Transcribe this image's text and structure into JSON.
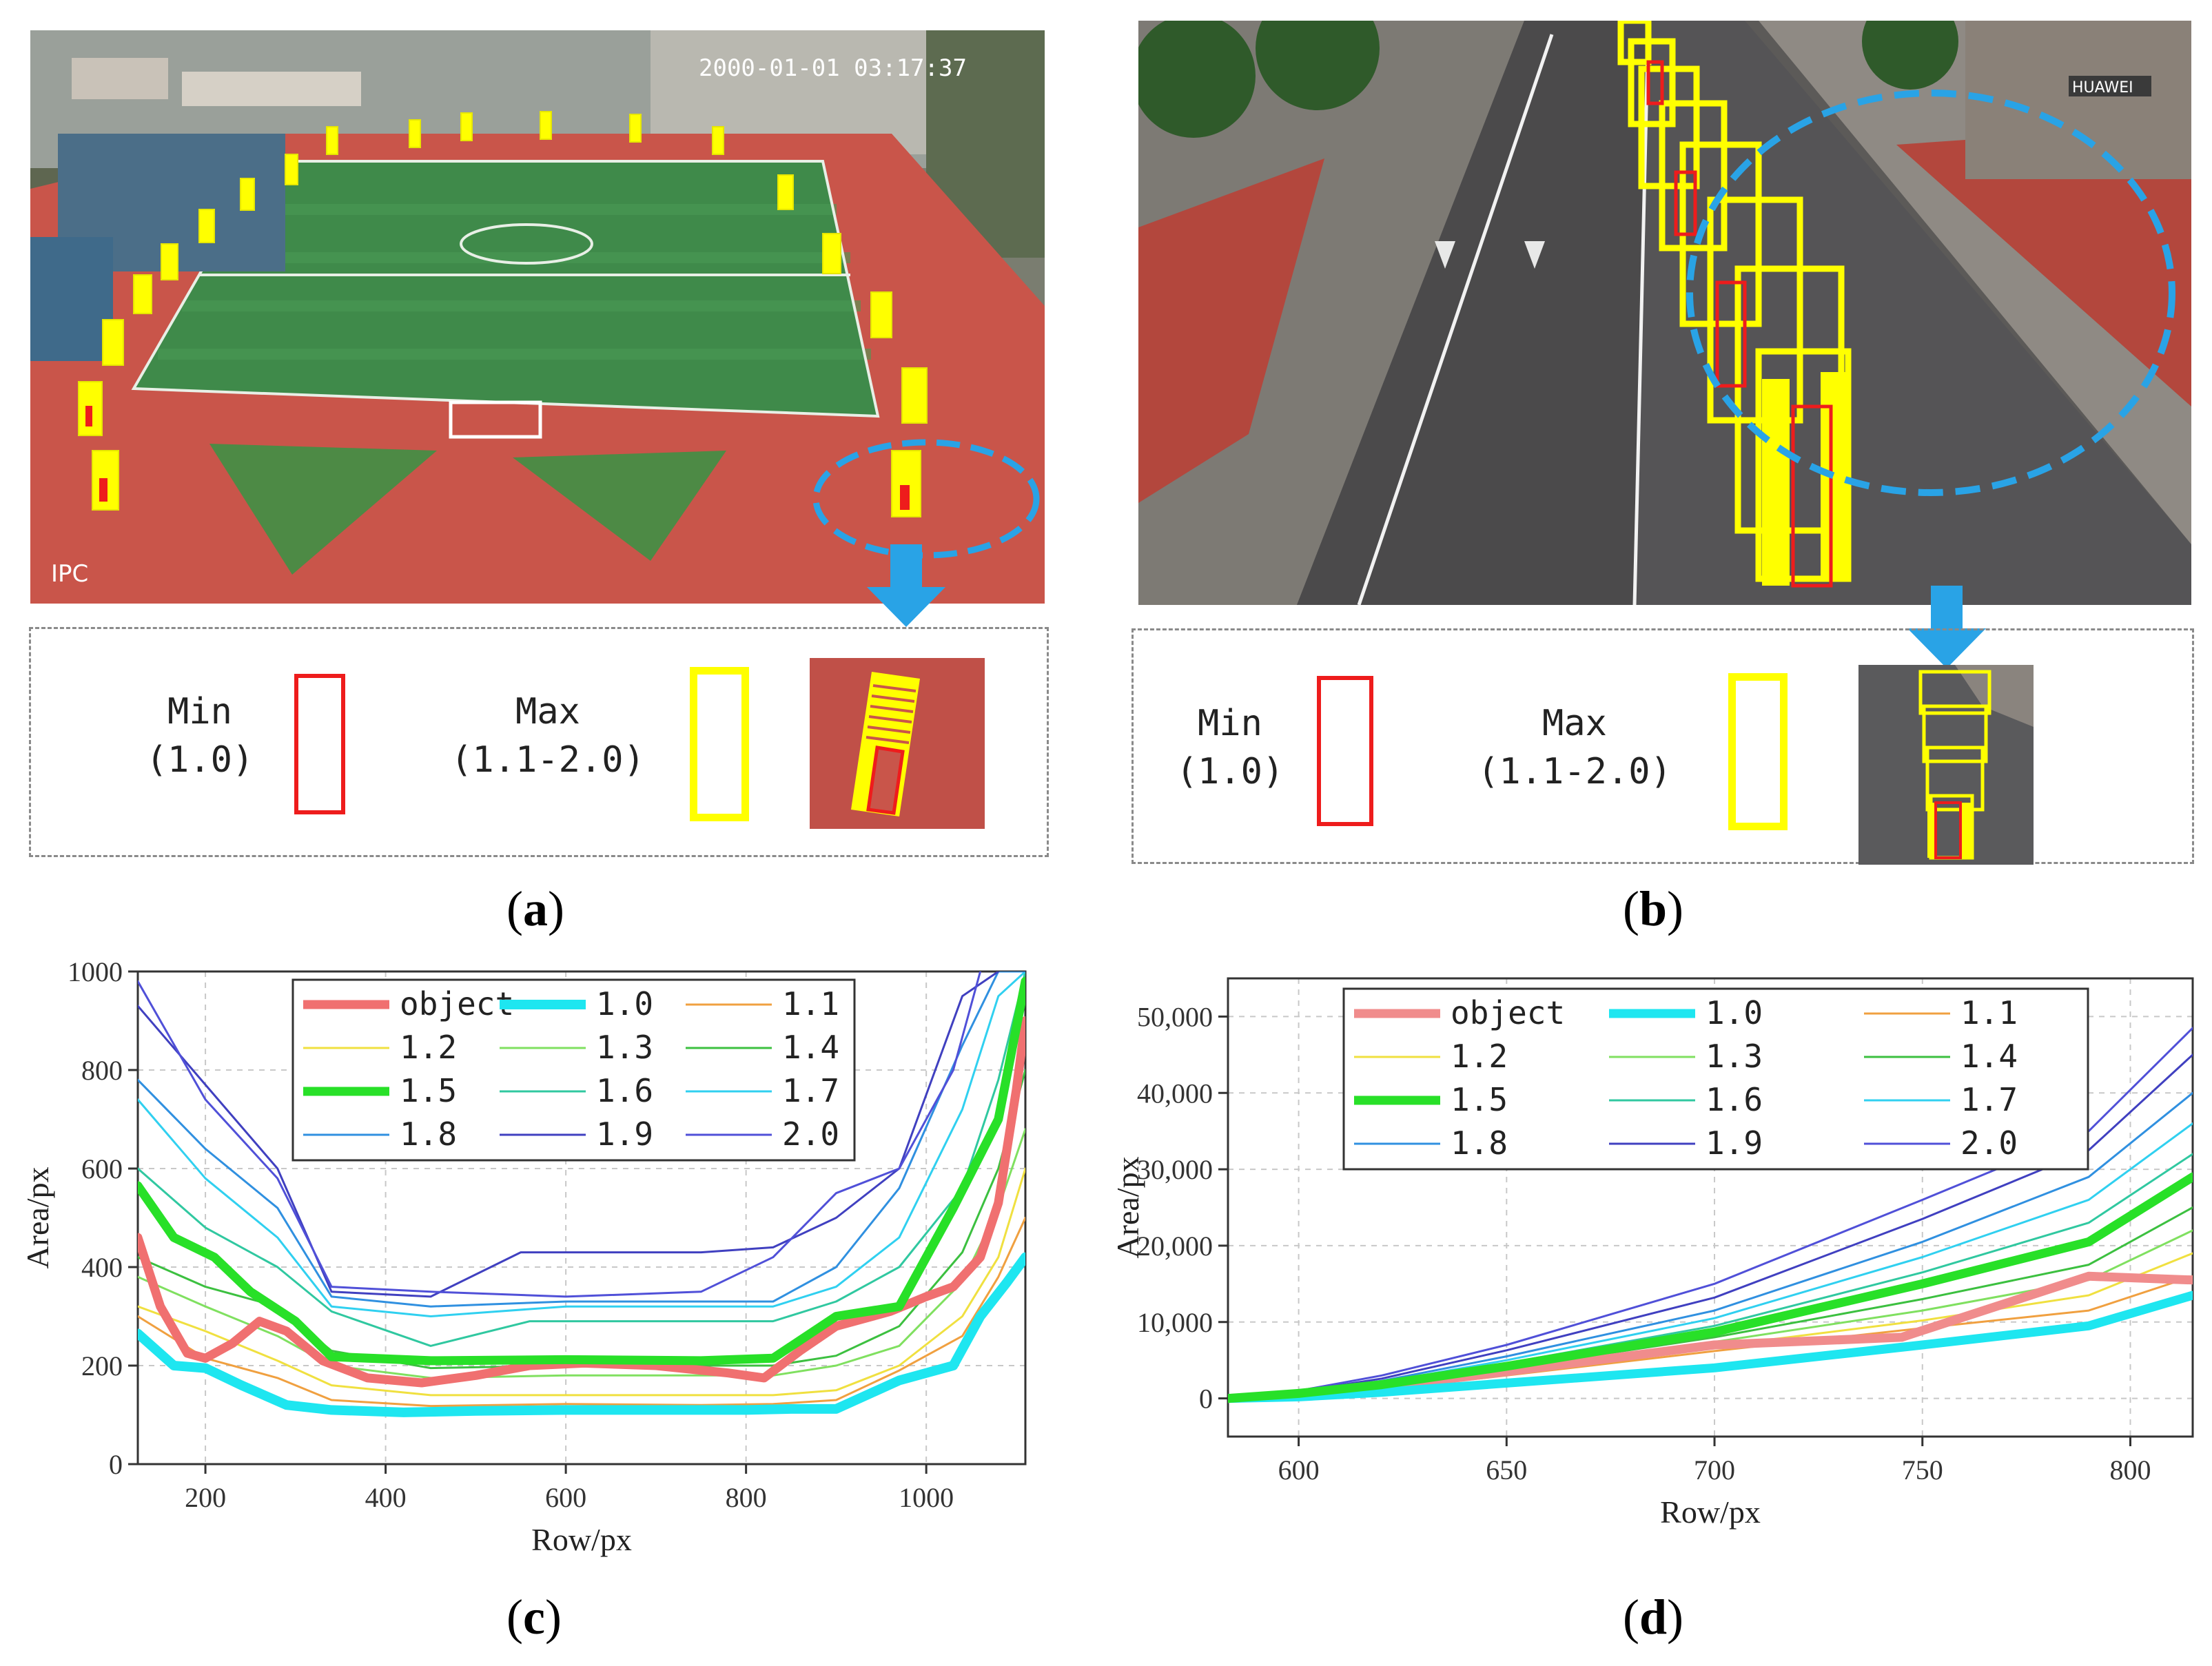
{
  "panels": {
    "a": {
      "caption_letter": "a",
      "timestamp": "2000-01-01 03:17:37",
      "camera_label": "IPC",
      "legend": {
        "min_label": "Min",
        "min_value": "(1.0)",
        "max_label": "Max",
        "max_value": "(1.1-2.0)"
      }
    },
    "b": {
      "caption_letter": "b",
      "shop_sign": "HUAWEI",
      "legend": {
        "min_label": "Min",
        "min_value": "(1.0)",
        "max_label": "Max",
        "max_value": "(1.1-2.0)"
      }
    },
    "c": {
      "caption_letter": "c"
    },
    "d": {
      "caption_letter": "d"
    }
  },
  "colors": {
    "min_box": "#ee1c1c",
    "max_box": "#ffff00",
    "highlight": "#29a3e6",
    "track": "#c9554a",
    "field": "#3f8a4a"
  },
  "chart_data": [
    {
      "id": "c",
      "type": "line",
      "xlabel": "Row/px",
      "ylabel": "Area/px",
      "xlim": [
        125,
        1110
      ],
      "ylim": [
        0,
        1000
      ],
      "xticks": [
        200,
        400,
        600,
        800,
        1000
      ],
      "yticks": [
        0,
        200,
        400,
        600,
        800,
        1000
      ],
      "ytick_labels": [
        "0",
        "200",
        "400",
        "600",
        "800",
        "1000"
      ],
      "grid": true,
      "legend_position": "top-center",
      "series": [
        {
          "name": "object",
          "color": "#f07070",
          "width": 13,
          "x": [
            125,
            150,
            180,
            200,
            230,
            260,
            290,
            330,
            380,
            440,
            500,
            560,
            620,
            700,
            780,
            820,
            860,
            900,
            960,
            1000,
            1030,
            1060,
            1080,
            1100,
            1110
          ],
          "y": [
            460,
            320,
            225,
            215,
            245,
            290,
            270,
            210,
            175,
            165,
            180,
            200,
            205,
            200,
            185,
            175,
            230,
            280,
            310,
            340,
            360,
            420,
            530,
            760,
            900
          ]
        },
        {
          "name": "1.0",
          "color": "#1ee6f0",
          "width": 14,
          "x": [
            125,
            165,
            200,
            240,
            290,
            340,
            420,
            500,
            600,
            700,
            800,
            850,
            900,
            970,
            1030,
            1060,
            1090,
            1110
          ],
          "y": [
            265,
            200,
            195,
            160,
            120,
            110,
            105,
            108,
            110,
            110,
            110,
            112,
            112,
            170,
            200,
            300,
            370,
            420
          ]
        },
        {
          "name": "1.1",
          "color": "#f0a040",
          "width": 3,
          "x": [
            125,
            200,
            280,
            340,
            450,
            600,
            750,
            830,
            900,
            970,
            1040,
            1080,
            1110
          ],
          "y": [
            300,
            215,
            175,
            130,
            118,
            122,
            120,
            122,
            130,
            190,
            260,
            380,
            500
          ]
        },
        {
          "name": "1.2",
          "color": "#f0e040",
          "width": 3,
          "x": [
            125,
            200,
            280,
            340,
            450,
            600,
            750,
            830,
            900,
            970,
            1040,
            1080,
            1110
          ],
          "y": [
            320,
            270,
            210,
            160,
            140,
            140,
            140,
            140,
            150,
            200,
            300,
            420,
            600
          ]
        },
        {
          "name": "1.3",
          "color": "#80e060",
          "width": 3,
          "x": [
            125,
            200,
            280,
            340,
            450,
            600,
            750,
            830,
            900,
            970,
            1040,
            1080,
            1110
          ],
          "y": [
            380,
            320,
            260,
            200,
            175,
            180,
            180,
            180,
            200,
            240,
            370,
            520,
            680
          ]
        },
        {
          "name": "1.4",
          "color": "#3cc040",
          "width": 3,
          "x": [
            125,
            200,
            280,
            340,
            450,
            600,
            750,
            830,
            900,
            970,
            1040,
            1080,
            1110
          ],
          "y": [
            420,
            360,
            320,
            230,
            195,
            200,
            200,
            200,
            220,
            280,
            430,
            600,
            800
          ]
        },
        {
          "name": "1.5",
          "color": "#28e028",
          "width": 13,
          "x": [
            125,
            165,
            210,
            250,
            300,
            340,
            450,
            600,
            750,
            830,
            900,
            970,
            1030,
            1080,
            1110
          ],
          "y": [
            565,
            460,
            420,
            350,
            290,
            218,
            210,
            212,
            210,
            215,
            300,
            320,
            520,
            700,
            980
          ]
        },
        {
          "name": "1.6",
          "color": "#30c8a0",
          "width": 3,
          "x": [
            125,
            200,
            280,
            340,
            450,
            560,
            750,
            830,
            900,
            970,
            1040,
            1080,
            1110
          ],
          "y": [
            600,
            480,
            400,
            310,
            240,
            290,
            290,
            290,
            330,
            400,
            560,
            780,
            1000
          ]
        },
        {
          "name": "1.7",
          "color": "#30d0f0",
          "width": 3,
          "x": [
            125,
            200,
            280,
            340,
            450,
            600,
            750,
            830,
            900,
            970,
            1040,
            1080,
            1110
          ],
          "y": [
            740,
            580,
            460,
            320,
            300,
            320,
            320,
            320,
            360,
            460,
            720,
            950,
            1000
          ]
        },
        {
          "name": "1.8",
          "color": "#3090e0",
          "width": 3,
          "x": [
            125,
            200,
            280,
            340,
            450,
            600,
            750,
            830,
            900,
            970,
            1040,
            1080,
            1110
          ],
          "y": [
            780,
            640,
            520,
            340,
            320,
            330,
            330,
            330,
            400,
            560,
            850,
            1000,
            1000
          ]
        },
        {
          "name": "1.9",
          "color": "#4040c0",
          "width": 3,
          "x": [
            125,
            200,
            280,
            340,
            450,
            550,
            750,
            830,
            900,
            970,
            1040,
            1080
          ],
          "y": [
            930,
            770,
            600,
            350,
            340,
            430,
            430,
            440,
            500,
            600,
            950,
            1000
          ]
        },
        {
          "name": "2.0",
          "color": "#5050d8",
          "width": 3,
          "x": [
            125,
            200,
            280,
            340,
            450,
            600,
            750,
            830,
            900,
            970,
            1030,
            1060
          ],
          "y": [
            980,
            740,
            580,
            360,
            350,
            340,
            350,
            420,
            550,
            600,
            800,
            1000
          ]
        }
      ]
    },
    {
      "id": "d",
      "type": "line",
      "xlabel": "Row/px",
      "ylabel": "Area/px",
      "xlim": [
        583,
        815
      ],
      "ylim": [
        -5000,
        55000
      ],
      "xticks": [
        600,
        650,
        700,
        750,
        800
      ],
      "yticks": [
        0,
        10000,
        20000,
        30000,
        40000,
        50000
      ],
      "ytick_labels": [
        "0",
        "10,000",
        "20,000",
        "30,000",
        "40,000",
        "50,000"
      ],
      "grid": true,
      "legend_position": "top-center",
      "series": [
        {
          "name": "object",
          "color": "#f08c8c",
          "width": 13,
          "x": [
            583,
            595,
            620,
            650,
            700,
            745,
            790,
            815
          ],
          "y": [
            0,
            200,
            1500,
            3500,
            7000,
            8000,
            16000,
            15500
          ]
        },
        {
          "name": "1.0",
          "color": "#1ee6f0",
          "width": 13,
          "x": [
            583,
            600,
            620,
            650,
            700,
            750,
            790,
            815
          ],
          "y": [
            0,
            200,
            800,
            2000,
            4000,
            7000,
            9500,
            13500
          ]
        },
        {
          "name": "1.1",
          "color": "#f0a040",
          "width": 3,
          "x": [
            583,
            600,
            620,
            650,
            700,
            750,
            790,
            815
          ],
          "y": [
            0,
            400,
            1200,
            3000,
            6200,
            9200,
            11500,
            16000
          ]
        },
        {
          "name": "1.2",
          "color": "#f0e040",
          "width": 3,
          "x": [
            583,
            600,
            620,
            650,
            700,
            750,
            790,
            815
          ],
          "y": [
            0,
            500,
            1400,
            3300,
            6800,
            10200,
            13500,
            19000
          ]
        },
        {
          "name": "1.3",
          "color": "#80e060",
          "width": 3,
          "x": [
            583,
            600,
            620,
            650,
            700,
            750,
            790,
            815
          ],
          "y": [
            0,
            550,
            1500,
            3600,
            7400,
            11500,
            15500,
            22000
          ]
        },
        {
          "name": "1.4",
          "color": "#3cc040",
          "width": 3,
          "x": [
            583,
            600,
            620,
            650,
            700,
            750,
            790,
            815
          ],
          "y": [
            0,
            600,
            1600,
            3900,
            8000,
            13000,
            17500,
            25000
          ]
        },
        {
          "name": "1.5",
          "color": "#28e028",
          "width": 13,
          "x": [
            583,
            600,
            620,
            650,
            700,
            750,
            790,
            815
          ],
          "y": [
            0,
            650,
            1800,
            4200,
            8700,
            15000,
            20500,
            29000
          ]
        },
        {
          "name": "1.6",
          "color": "#30c8a0",
          "width": 3,
          "x": [
            583,
            600,
            620,
            650,
            700,
            750,
            790,
            815
          ],
          "y": [
            0,
            700,
            1900,
            4600,
            9500,
            16500,
            23000,
            32000
          ]
        },
        {
          "name": "1.7",
          "color": "#30d0f0",
          "width": 3,
          "x": [
            583,
            600,
            620,
            650,
            700,
            750,
            790,
            815
          ],
          "y": [
            0,
            750,
            2100,
            5000,
            10500,
            18500,
            26000,
            36000
          ]
        },
        {
          "name": "1.8",
          "color": "#3090e0",
          "width": 3,
          "x": [
            583,
            600,
            620,
            650,
            700,
            750,
            790,
            815
          ],
          "y": [
            0,
            800,
            2300,
            5500,
            11500,
            20500,
            29000,
            40000
          ]
        },
        {
          "name": "1.9",
          "color": "#4040c0",
          "width": 3,
          "x": [
            583,
            600,
            620,
            650,
            700,
            750,
            790,
            815
          ],
          "y": [
            0,
            900,
            2600,
            6300,
            13200,
            23500,
            32500,
            45000
          ]
        },
        {
          "name": "2.0",
          "color": "#5050d8",
          "width": 3,
          "x": [
            583,
            600,
            620,
            650,
            700,
            750,
            790,
            815
          ],
          "y": [
            0,
            1000,
            3000,
            7000,
            15000,
            26000,
            35000,
            48500
          ]
        }
      ]
    }
  ]
}
